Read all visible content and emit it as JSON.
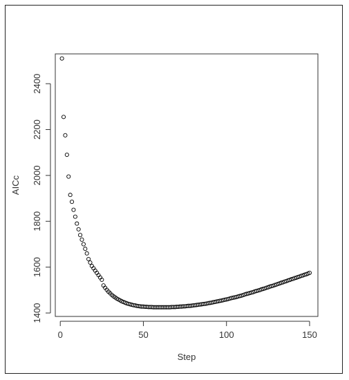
{
  "chart_data": {
    "type": "scatter",
    "title": "",
    "xlabel": "Step",
    "ylabel": "AICc",
    "xlim": [
      -3,
      155
    ],
    "ylim": [
      1385,
      2530
    ],
    "xticks": [
      0,
      50,
      100,
      150
    ],
    "yticks": [
      1400,
      1600,
      1800,
      2000,
      2200,
      2400
    ],
    "grid": false,
    "legend": "none",
    "marker": "open-circle",
    "colors": {
      "marker": "#000000",
      "axis": "#333333",
      "frame": "#222222"
    },
    "series": [
      {
        "x": [
          1,
          2,
          3,
          4,
          5,
          6,
          7,
          8,
          9,
          10,
          11,
          12,
          13,
          14,
          15,
          16,
          17,
          18,
          19,
          20,
          21,
          22,
          23,
          24,
          25,
          26,
          27,
          28,
          29,
          30,
          31,
          32,
          33,
          34,
          35,
          36,
          37,
          38,
          39,
          40,
          41,
          42,
          43,
          44,
          45,
          46,
          47,
          48,
          49,
          50,
          51,
          52,
          53,
          54,
          55,
          56,
          57,
          58,
          59,
          60,
          61,
          62,
          63,
          64,
          65,
          66,
          67,
          68,
          69,
          70,
          71,
          72,
          73,
          74,
          75,
          76,
          77,
          78,
          79,
          80,
          81,
          82,
          83,
          84,
          85,
          86,
          87,
          88,
          89,
          90,
          91,
          92,
          93,
          94,
          95,
          96,
          97,
          98,
          99,
          100,
          101,
          102,
          103,
          104,
          105,
          106,
          107,
          108,
          109,
          110,
          111,
          112,
          113,
          114,
          115,
          116,
          117,
          118,
          119,
          120,
          121,
          122,
          123,
          124,
          125,
          126,
          127,
          128,
          129,
          130,
          131,
          132,
          133,
          134,
          135,
          136,
          137,
          138,
          139,
          140,
          141,
          142,
          143,
          144,
          145,
          146,
          147,
          148,
          149,
          150
        ],
        "y": [
          2510,
          2255,
          2175,
          2090,
          1995,
          1915,
          1885,
          1850,
          1820,
          1790,
          1765,
          1740,
          1720,
          1700,
          1680,
          1660,
          1635,
          1620,
          1605,
          1595,
          1585,
          1575,
          1565,
          1555,
          1545,
          1520,
          1510,
          1501,
          1493,
          1486,
          1479,
          1473,
          1468,
          1463,
          1459,
          1455,
          1451,
          1448,
          1445,
          1442,
          1440,
          1438,
          1436,
          1434,
          1433,
          1431,
          1430,
          1429,
          1428,
          1428,
          1427,
          1427,
          1426,
          1426,
          1426,
          1425,
          1425,
          1425,
          1425,
          1425,
          1425,
          1425,
          1425,
          1425,
          1425,
          1425,
          1426,
          1426,
          1426,
          1427,
          1427,
          1428,
          1428,
          1429,
          1429,
          1430,
          1431,
          1431,
          1432,
          1433,
          1434,
          1435,
          1436,
          1437,
          1438,
          1439,
          1440,
          1441,
          1443,
          1444,
          1445,
          1447,
          1448,
          1450,
          1451,
          1453,
          1454,
          1456,
          1458,
          1459,
          1461,
          1463,
          1465,
          1467,
          1468,
          1470,
          1472,
          1474,
          1476,
          1478,
          1481,
          1483,
          1485,
          1487,
          1489,
          1491,
          1494,
          1496,
          1498,
          1500,
          1503,
          1505,
          1507,
          1510,
          1512,
          1515,
          1517,
          1519,
          1522,
          1524,
          1527,
          1529,
          1532,
          1534,
          1537,
          1539,
          1542,
          1544,
          1547,
          1549,
          1552,
          1554,
          1557,
          1559,
          1562,
          1564,
          1567,
          1569,
          1572,
          1575
        ]
      }
    ]
  }
}
